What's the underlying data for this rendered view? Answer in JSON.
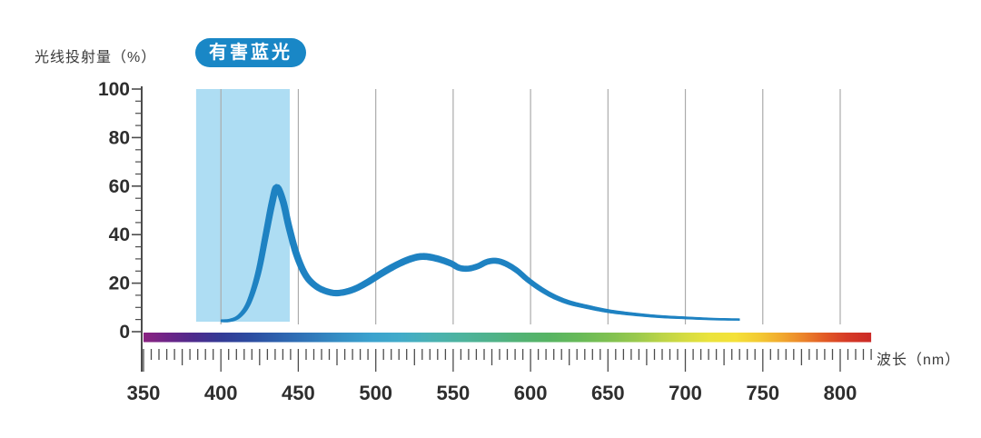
{
  "colors": {
    "badge_bg": "#1987c6",
    "band_fill": "#aeddf3",
    "curve": "#1e82c2",
    "grid": "#ababab",
    "axis": "#4c4c4c",
    "label": "#2e2e2e"
  },
  "badge": {
    "label": "有害蓝光"
  },
  "chart_data": {
    "type": "line",
    "title": "",
    "ylabel": "光线投射量（%）",
    "xlabel": "波长（nm）",
    "legend": "none",
    "grid": "vertical-only",
    "y_axis": {
      "title": "光线投射量（%）",
      "min": 0,
      "max": 100,
      "major_tick_step": 20,
      "minor_tick_step": 5,
      "labels": [
        100,
        80,
        60,
        40,
        20,
        0
      ]
    },
    "x_axis": {
      "unit_label": "波长（nm）",
      "min": 350,
      "max": 820,
      "major_tick_step": 50,
      "medium_tick_step": 25,
      "minor_tick_step": 5,
      "labels": [
        350,
        400,
        450,
        500,
        550,
        600,
        650,
        700,
        750,
        800
      ]
    },
    "gridlines_nm": [
      400,
      450,
      500,
      550,
      600,
      650,
      700,
      750,
      800
    ],
    "highlight_band": {
      "label": "有害蓝光",
      "from_nm": 384,
      "to_nm": 444.5
    },
    "series": [
      {
        "name": "有害蓝光",
        "points_format": [
          "wavelength_nm",
          "percent",
          "stroke_width_px"
        ],
        "points": [
          [
            400,
            4.5,
            2.5
          ],
          [
            406,
            4.7,
            3.2
          ],
          [
            412,
            6.5,
            4
          ],
          [
            418,
            12,
            5
          ],
          [
            424,
            24,
            6
          ],
          [
            429,
            40,
            6.5
          ],
          [
            433,
            53,
            7
          ],
          [
            436,
            59.5,
            7
          ],
          [
            440,
            54,
            7
          ],
          [
            444,
            43,
            7
          ],
          [
            449,
            31.5,
            7
          ],
          [
            455,
            23,
            6.8
          ],
          [
            462,
            18.5,
            6.6
          ],
          [
            470,
            16.3,
            6.5
          ],
          [
            477,
            16,
            6.5
          ],
          [
            486,
            17.5,
            6.6
          ],
          [
            495,
            20.5,
            6.8
          ],
          [
            505,
            24.5,
            7
          ],
          [
            515,
            28,
            7
          ],
          [
            524,
            30.3,
            7
          ],
          [
            531,
            31,
            7
          ],
          [
            539,
            30.2,
            6.8
          ],
          [
            548,
            28.3,
            6.5
          ],
          [
            554,
            26.3,
            6.2
          ],
          [
            560,
            26,
            6.1
          ],
          [
            566,
            27,
            6
          ],
          [
            572,
            28.8,
            6
          ],
          [
            578,
            29.2,
            6
          ],
          [
            584,
            28,
            5.9
          ],
          [
            591,
            25.3,
            5.7
          ],
          [
            598,
            21.5,
            5.5
          ],
          [
            606,
            17.8,
            5.2
          ],
          [
            615,
            14.5,
            5
          ],
          [
            625,
            12,
            4.6
          ],
          [
            636,
            10.3,
            4.2
          ],
          [
            650,
            8.5,
            3.7
          ],
          [
            665,
            7.3,
            3.2
          ],
          [
            682,
            6.3,
            2.8
          ],
          [
            700,
            5.7,
            2.5
          ],
          [
            718,
            5.2,
            2.2
          ],
          [
            735,
            5,
            2
          ]
        ]
      }
    ],
    "spectrum_bar": {
      "from_nm": 350,
      "to_nm": 820,
      "stops": [
        {
          "nm": 350,
          "color": "#8B2381"
        },
        {
          "nm": 365,
          "color": "#6E2487"
        },
        {
          "nm": 382,
          "color": "#4E2A8C"
        },
        {
          "nm": 400,
          "color": "#333A95"
        },
        {
          "nm": 418,
          "color": "#2C4BA0"
        },
        {
          "nm": 438,
          "color": "#2D62AE"
        },
        {
          "nm": 458,
          "color": "#3078BA"
        },
        {
          "nm": 478,
          "color": "#3590C5"
        },
        {
          "nm": 497,
          "color": "#3BA2CE"
        },
        {
          "nm": 515,
          "color": "#41ABCA"
        },
        {
          "nm": 535,
          "color": "#49B1B4"
        },
        {
          "nm": 555,
          "color": "#4DB39E"
        },
        {
          "nm": 575,
          "color": "#4FB28A"
        },
        {
          "nm": 595,
          "color": "#52B272"
        },
        {
          "nm": 612,
          "color": "#57B463"
        },
        {
          "nm": 632,
          "color": "#68BA58"
        },
        {
          "nm": 652,
          "color": "#81C150"
        },
        {
          "nm": 668,
          "color": "#99C94D"
        },
        {
          "nm": 685,
          "color": "#BCD447"
        },
        {
          "nm": 700,
          "color": "#D5DC41"
        },
        {
          "nm": 715,
          "color": "#EAE33C"
        },
        {
          "nm": 732,
          "color": "#F4E138"
        },
        {
          "nm": 748,
          "color": "#F3C933"
        },
        {
          "nm": 762,
          "color": "#F1A92E"
        },
        {
          "nm": 776,
          "color": "#EB842A"
        },
        {
          "nm": 790,
          "color": "#E25A25"
        },
        {
          "nm": 804,
          "color": "#D63B26"
        },
        {
          "nm": 820,
          "color": "#CB2A27"
        }
      ]
    }
  }
}
